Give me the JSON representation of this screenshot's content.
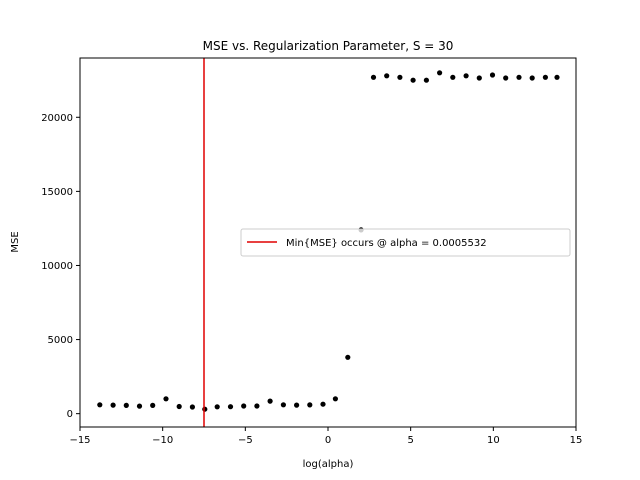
{
  "chart_data": {
    "type": "scatter",
    "title": "MSE vs. Regularization Parameter, S = 30",
    "xlabel": "log(alpha)",
    "ylabel": "MSE",
    "xlim": [
      -15,
      15
    ],
    "ylim": [
      -900,
      24000
    ],
    "xticks": [
      -15,
      -10,
      -5,
      0,
      5,
      10,
      15
    ],
    "xtick_labels": [
      "−15",
      "−10",
      "−5",
      "0",
      "5",
      "10",
      "15"
    ],
    "yticks": [
      0,
      5000,
      10000,
      15000,
      20000
    ],
    "ytick_labels": [
      "0",
      "5000",
      "10000",
      "15000",
      "20000"
    ],
    "grid": false,
    "legend_position": "center-right",
    "series": [
      {
        "marker": "dot",
        "color": "#000000",
        "points": [
          [
            -13.8,
            600
          ],
          [
            -13.0,
            580
          ],
          [
            -12.2,
            560
          ],
          [
            -11.4,
            510
          ],
          [
            -10.6,
            560
          ],
          [
            -9.8,
            1000
          ],
          [
            -9.0,
            480
          ],
          [
            -8.2,
            450
          ],
          [
            -7.45,
            300
          ],
          [
            -6.7,
            460
          ],
          [
            -5.9,
            470
          ],
          [
            -5.1,
            520
          ],
          [
            -4.3,
            520
          ],
          [
            -3.5,
            850
          ],
          [
            -2.7,
            600
          ],
          [
            -1.9,
            580
          ],
          [
            -1.1,
            590
          ],
          [
            -0.3,
            640
          ],
          [
            0.45,
            1000
          ],
          [
            1.2,
            3800
          ],
          [
            2.0,
            12400
          ],
          [
            2.75,
            22700
          ],
          [
            3.55,
            22800
          ],
          [
            4.35,
            22700
          ],
          [
            5.15,
            22500
          ],
          [
            5.95,
            22500
          ],
          [
            6.75,
            23000
          ],
          [
            7.55,
            22700
          ],
          [
            8.35,
            22800
          ],
          [
            9.15,
            22650
          ],
          [
            9.95,
            22850
          ],
          [
            10.75,
            22650
          ],
          [
            11.55,
            22700
          ],
          [
            12.35,
            22650
          ],
          [
            13.15,
            22700
          ],
          [
            13.85,
            22700
          ]
        ]
      }
    ],
    "vline": {
      "x": -7.5,
      "color": "#e00000",
      "label": "Min{MSE} occurs @ alpha = 0.0005532"
    }
  }
}
